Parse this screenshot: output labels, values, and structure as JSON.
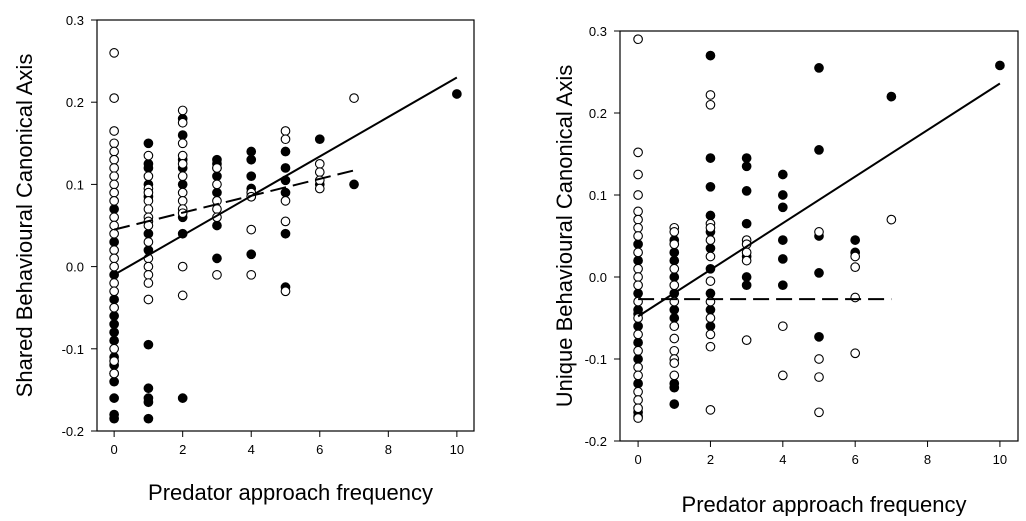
{
  "chart_data": [
    {
      "type": "scatter",
      "xlabel": "Predator approach frequency",
      "ylabel": "Shared Behavioural Canonical Axis",
      "xlim": [
        -0.5,
        10.5
      ],
      "ylim": [
        -0.2,
        0.3
      ],
      "xticks": [
        0,
        2,
        4,
        6,
        8,
        10
      ],
      "yticks": [
        -0.2,
        -0.1,
        0.0,
        0.1,
        0.2,
        0.3
      ],
      "xtick_labels": [
        "0",
        "2",
        "4",
        "6",
        "8",
        "10"
      ],
      "ytick_labels": [
        "-0.2",
        "-0.1",
        "0.0",
        "0.1",
        "0.2",
        "0.3"
      ],
      "grid": false,
      "series": [
        {
          "marker": "filled-circle",
          "color": "#000000",
          "points": [
            [
              0,
              0.07
            ],
            [
              0,
              0.03
            ],
            [
              0,
              -0.01
            ],
            [
              0,
              -0.04
            ],
            [
              0,
              -0.06
            ],
            [
              0,
              -0.07
            ],
            [
              0,
              -0.08
            ],
            [
              0,
              -0.09
            ],
            [
              0,
              -0.11
            ],
            [
              0,
              -0.12
            ],
            [
              0,
              -0.13
            ],
            [
              0,
              -0.14
            ],
            [
              0,
              -0.16
            ],
            [
              0,
              -0.18
            ],
            [
              0,
              -0.185
            ],
            [
              1,
              0.15
            ],
            [
              1,
              0.125
            ],
            [
              1,
              0.12
            ],
            [
              1,
              0.1
            ],
            [
              1,
              0.085
            ],
            [
              1,
              0.04
            ],
            [
              1,
              0.02
            ],
            [
              1,
              -0.095
            ],
            [
              1,
              -0.148
            ],
            [
              1,
              -0.16
            ],
            [
              1,
              -0.165
            ],
            [
              1,
              -0.185
            ],
            [
              2,
              0.18
            ],
            [
              2,
              0.16
            ],
            [
              2,
              0.13
            ],
            [
              2,
              0.12
            ],
            [
              2,
              0.1
            ],
            [
              2,
              0.06
            ],
            [
              2,
              0.04
            ],
            [
              2,
              -0.16
            ],
            [
              3,
              0.13
            ],
            [
              3,
              0.125
            ],
            [
              3,
              0.12
            ],
            [
              3,
              0.11
            ],
            [
              3,
              0.09
            ],
            [
              3,
              0.05
            ],
            [
              3,
              0.01
            ],
            [
              4,
              0.14
            ],
            [
              4,
              0.13
            ],
            [
              4,
              0.11
            ],
            [
              4,
              0.095
            ],
            [
              4,
              0.085
            ],
            [
              4,
              0.015
            ],
            [
              5,
              0.14
            ],
            [
              5,
              0.12
            ],
            [
              5,
              0.105
            ],
            [
              5,
              0.09
            ],
            [
              5,
              0.04
            ],
            [
              5,
              -0.025
            ],
            [
              6,
              0.155
            ],
            [
              6,
              0.1
            ],
            [
              7,
              0.1
            ],
            [
              10,
              0.21
            ]
          ]
        },
        {
          "marker": "open-circle",
          "color": "#000000",
          "points": [
            [
              0,
              0.26
            ],
            [
              0,
              0.205
            ],
            [
              0,
              0.165
            ],
            [
              0,
              0.15
            ],
            [
              0,
              0.14
            ],
            [
              0,
              0.13
            ],
            [
              0,
              0.12
            ],
            [
              0,
              0.11
            ],
            [
              0,
              0.1
            ],
            [
              0,
              0.09
            ],
            [
              0,
              0.08
            ],
            [
              0,
              0.06
            ],
            [
              0,
              0.05
            ],
            [
              0,
              0.04
            ],
            [
              0,
              0.02
            ],
            [
              0,
              0.01
            ],
            [
              0,
              0.0
            ],
            [
              0,
              -0.02
            ],
            [
              0,
              -0.03
            ],
            [
              0,
              -0.05
            ],
            [
              0,
              -0.1
            ],
            [
              0,
              -0.115
            ],
            [
              0,
              -0.13
            ],
            [
              1,
              0.135
            ],
            [
              1,
              0.11
            ],
            [
              1,
              0.095
            ],
            [
              1,
              0.09
            ],
            [
              1,
              0.08
            ],
            [
              1,
              0.07
            ],
            [
              1,
              0.06
            ],
            [
              1,
              0.055
            ],
            [
              1,
              0.05
            ],
            [
              1,
              0.03
            ],
            [
              1,
              0.01
            ],
            [
              1,
              0.0
            ],
            [
              1,
              -0.01
            ],
            [
              1,
              -0.02
            ],
            [
              1,
              -0.04
            ],
            [
              2,
              0.19
            ],
            [
              2,
              0.175
            ],
            [
              2,
              0.15
            ],
            [
              2,
              0.135
            ],
            [
              2,
              0.125
            ],
            [
              2,
              0.11
            ],
            [
              2,
              0.09
            ],
            [
              2,
              0.08
            ],
            [
              2,
              0.07
            ],
            [
              2,
              0.065
            ],
            [
              2,
              0.0
            ],
            [
              2,
              -0.035
            ],
            [
              3,
              0.12
            ],
            [
              3,
              0.1
            ],
            [
              3,
              0.08
            ],
            [
              3,
              0.07
            ],
            [
              3,
              0.06
            ],
            [
              3,
              -0.01
            ],
            [
              4,
              0.09
            ],
            [
              4,
              0.085
            ],
            [
              4,
              0.045
            ],
            [
              4,
              -0.01
            ],
            [
              5,
              0.165
            ],
            [
              5,
              0.155
            ],
            [
              5,
              0.08
            ],
            [
              5,
              0.055
            ],
            [
              5,
              -0.03
            ],
            [
              6,
              0.125
            ],
            [
              6,
              0.115
            ],
            [
              6,
              0.105
            ],
            [
              6,
              0.095
            ],
            [
              7,
              0.205
            ]
          ]
        }
      ],
      "fit_lines": [
        {
          "style": "solid",
          "x": [
            0,
            10
          ],
          "y": [
            -0.01,
            0.23
          ]
        },
        {
          "style": "dashed",
          "x": [
            0,
            7
          ],
          "y": [
            0.045,
            0.117
          ]
        }
      ]
    },
    {
      "type": "scatter",
      "xlabel": "Predator approach frequency",
      "ylabel": "Unique Behavioural Canonical Axis",
      "xlim": [
        -0.5,
        10.5
      ],
      "ylim": [
        -0.2,
        0.3
      ],
      "xticks": [
        0,
        2,
        4,
        6,
        8,
        10
      ],
      "yticks": [
        -0.2,
        -0.1,
        0.0,
        0.1,
        0.2,
        0.3
      ],
      "xtick_labels": [
        "0",
        "2",
        "4",
        "6",
        "8",
        "10"
      ],
      "ytick_labels": [
        "-0.2",
        "-0.1",
        "0.0",
        "0.1",
        "0.2",
        "0.3"
      ],
      "grid": false,
      "series": [
        {
          "marker": "filled-circle",
          "color": "#000000",
          "points": [
            [
              0,
              0.04
            ],
            [
              0,
              0.02
            ],
            [
              0,
              -0.02
            ],
            [
              0,
              -0.04
            ],
            [
              0,
              -0.045
            ],
            [
              0,
              -0.06
            ],
            [
              0,
              -0.08
            ],
            [
              0,
              -0.1
            ],
            [
              0,
              -0.13
            ],
            [
              0,
              -0.165
            ],
            [
              0,
              -0.17
            ],
            [
              1,
              0.045
            ],
            [
              1,
              0.03
            ],
            [
              1,
              0.02
            ],
            [
              1,
              0.0
            ],
            [
              1,
              -0.02
            ],
            [
              1,
              -0.04
            ],
            [
              1,
              -0.05
            ],
            [
              1,
              -0.13
            ],
            [
              1,
              -0.135
            ],
            [
              1,
              -0.155
            ],
            [
              2,
              0.27
            ],
            [
              2,
              0.145
            ],
            [
              2,
              0.11
            ],
            [
              2,
              0.075
            ],
            [
              2,
              0.055
            ],
            [
              2,
              0.035
            ],
            [
              2,
              0.01
            ],
            [
              2,
              -0.02
            ],
            [
              2,
              -0.04
            ],
            [
              2,
              -0.06
            ],
            [
              3,
              0.145
            ],
            [
              3,
              0.135
            ],
            [
              3,
              0.105
            ],
            [
              3,
              0.065
            ],
            [
              3,
              0.025
            ],
            [
              3,
              0.0
            ],
            [
              3,
              -0.01
            ],
            [
              4,
              0.125
            ],
            [
              4,
              0.1
            ],
            [
              4,
              0.085
            ],
            [
              4,
              0.045
            ],
            [
              4,
              0.022
            ],
            [
              4,
              -0.01
            ],
            [
              5,
              0.255
            ],
            [
              5,
              0.155
            ],
            [
              5,
              0.05
            ],
            [
              5,
              0.005
            ],
            [
              5,
              -0.073
            ],
            [
              6,
              0.045
            ],
            [
              6,
              0.03
            ],
            [
              7,
              0.22
            ],
            [
              10,
              0.258
            ]
          ]
        },
        {
          "marker": "open-circle",
          "color": "#000000",
          "points": [
            [
              0,
              0.29
            ],
            [
              0,
              0.152
            ],
            [
              0,
              0.125
            ],
            [
              0,
              0.1
            ],
            [
              0,
              0.08
            ],
            [
              0,
              0.07
            ],
            [
              0,
              0.06
            ],
            [
              0,
              0.05
            ],
            [
              0,
              0.03
            ],
            [
              0,
              0.01
            ],
            [
              0,
              0.0
            ],
            [
              0,
              -0.01
            ],
            [
              0,
              -0.03
            ],
            [
              0,
              -0.05
            ],
            [
              0,
              -0.07
            ],
            [
              0,
              -0.09
            ],
            [
              0,
              -0.11
            ],
            [
              0,
              -0.12
            ],
            [
              0,
              -0.14
            ],
            [
              0,
              -0.15
            ],
            [
              0,
              -0.16
            ],
            [
              0,
              -0.172
            ],
            [
              1,
              0.06
            ],
            [
              1,
              0.055
            ],
            [
              1,
              0.04
            ],
            [
              1,
              0.01
            ],
            [
              1,
              -0.01
            ],
            [
              1,
              -0.03
            ],
            [
              1,
              -0.06
            ],
            [
              1,
              -0.075
            ],
            [
              1,
              -0.09
            ],
            [
              1,
              -0.1
            ],
            [
              1,
              -0.105
            ],
            [
              1,
              -0.12
            ],
            [
              2,
              0.222
            ],
            [
              2,
              0.21
            ],
            [
              2,
              0.065
            ],
            [
              2,
              0.06
            ],
            [
              2,
              0.045
            ],
            [
              2,
              0.025
            ],
            [
              2,
              -0.005
            ],
            [
              2,
              -0.03
            ],
            [
              2,
              -0.05
            ],
            [
              2,
              -0.07
            ],
            [
              2,
              -0.085
            ],
            [
              2,
              -0.162
            ],
            [
              3,
              0.045
            ],
            [
              3,
              0.04
            ],
            [
              3,
              0.03
            ],
            [
              3,
              0.02
            ],
            [
              3,
              -0.077
            ],
            [
              4,
              -0.06
            ],
            [
              4,
              -0.12
            ],
            [
              5,
              0.055
            ],
            [
              5,
              -0.1
            ],
            [
              5,
              -0.122
            ],
            [
              5,
              -0.165
            ],
            [
              6,
              0.025
            ],
            [
              6,
              0.012
            ],
            [
              6,
              -0.025
            ],
            [
              6,
              -0.093
            ],
            [
              7,
              0.07
            ]
          ]
        }
      ],
      "fit_lines": [
        {
          "style": "solid",
          "x": [
            0,
            10
          ],
          "y": [
            -0.048,
            0.236
          ]
        },
        {
          "style": "dashed",
          "x": [
            0,
            7
          ],
          "y": [
            -0.027,
            -0.027
          ]
        }
      ]
    }
  ]
}
